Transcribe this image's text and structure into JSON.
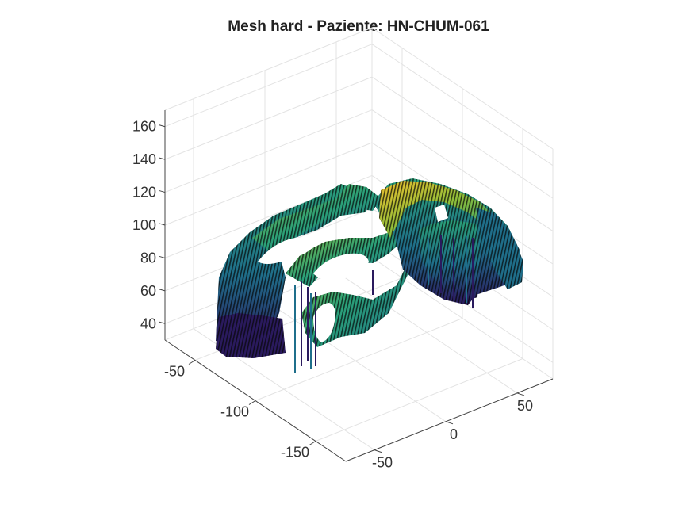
{
  "figure": {
    "title": "Mesh hard - Paziente: HN-CHUM-061"
  },
  "chart_data": {
    "type": "surface",
    "title": "Mesh hard - Paziente: HN-CHUM-061",
    "xlabel": "",
    "ylabel": "",
    "zlabel": "",
    "colormap": "parula",
    "grid": true,
    "axes": {
      "x": {
        "lim": [
          -70,
          75
        ],
        "ticks": [
          -50,
          0,
          50
        ],
        "tick_labels": [
          "-50",
          "0",
          "50"
        ]
      },
      "y": {
        "lim": [
          -175,
          -25
        ],
        "ticks": [
          -150,
          -100,
          -50
        ],
        "tick_labels": [
          "-150",
          "-100",
          "-50"
        ]
      },
      "z": {
        "lim": [
          30,
          170
        ],
        "ticks": [
          40,
          60,
          80,
          100,
          120,
          140,
          160
        ],
        "tick_labels": [
          "40",
          "60",
          "80",
          "100",
          "120",
          "140",
          "160"
        ]
      }
    },
    "colors": {
      "low": "#2a1a5e",
      "mid_low": "#1f6f8b",
      "mid": "#2aa17a",
      "mid_high": "#8dbf3a",
      "high": "#f2c12e",
      "edge": "#050505"
    }
  }
}
